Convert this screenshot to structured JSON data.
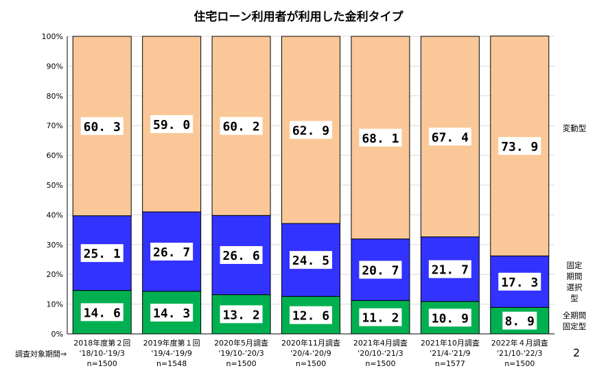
{
  "chart_data": {
    "type": "bar",
    "stacked": true,
    "title": "住宅ローン利用者が利用した金利タイプ",
    "ylim": [
      0,
      100
    ],
    "yticks": [
      "0%",
      "10%",
      "20%",
      "30%",
      "40%",
      "50%",
      "60%",
      "70%",
      "80%",
      "90%",
      "100%"
    ],
    "grid": true,
    "categories": [
      {
        "name": "2018年度第２回",
        "period": "'18/10-'19/3",
        "n": "n=1500"
      },
      {
        "name": "2019年度第１回",
        "period": "'19/4-'19/9",
        "n": "n=1548"
      },
      {
        "name": "2020年5月調査",
        "period": "'19/10-'20/3",
        "n": "n=1500"
      },
      {
        "name": "2020年11月調査",
        "period": "'20/4-'20/9",
        "n": "n=1500"
      },
      {
        "name": "2021年4月調査",
        "period": "'20/10-'21/3",
        "n": "n=1500"
      },
      {
        "name": "2021年10月調査",
        "period": "'21/4-'21/9",
        "n": "n=1577"
      },
      {
        "name": "2022年４月調査",
        "period": "'21/10-'22/3",
        "n": "n=1500"
      }
    ],
    "period_prefix": "調査対象期間⇒",
    "series": [
      {
        "name": "全期間固定型",
        "label_lines": [
          "全期間",
          "固定型"
        ],
        "color": "#00b050",
        "values": [
          14.6,
          14.3,
          13.2,
          12.6,
          11.2,
          10.9,
          8.9
        ],
        "labels": [
          "14.6",
          "14.3",
          "13.2",
          "12.6",
          "11.2",
          "10.9",
          "8.9"
        ]
      },
      {
        "name": "固定期間選択型",
        "label_lines": [
          "固定",
          "期間",
          "選択",
          "型"
        ],
        "color": "#3333ff",
        "values": [
          25.1,
          26.7,
          26.6,
          24.5,
          20.7,
          21.7,
          17.3
        ],
        "labels": [
          "25.1",
          "26.7",
          "26.6",
          "24.5",
          "20.7",
          "21.7",
          "17.3"
        ]
      },
      {
        "name": "変動型",
        "label_lines": [
          "変動型"
        ],
        "color": "#fac898",
        "values": [
          60.3,
          59.0,
          60.2,
          62.9,
          68.1,
          67.4,
          73.9
        ],
        "labels": [
          "60.3",
          "59.0",
          "60.2",
          "62.9",
          "68.1",
          "67.4",
          "73.9"
        ]
      }
    ]
  },
  "page_number": "2"
}
